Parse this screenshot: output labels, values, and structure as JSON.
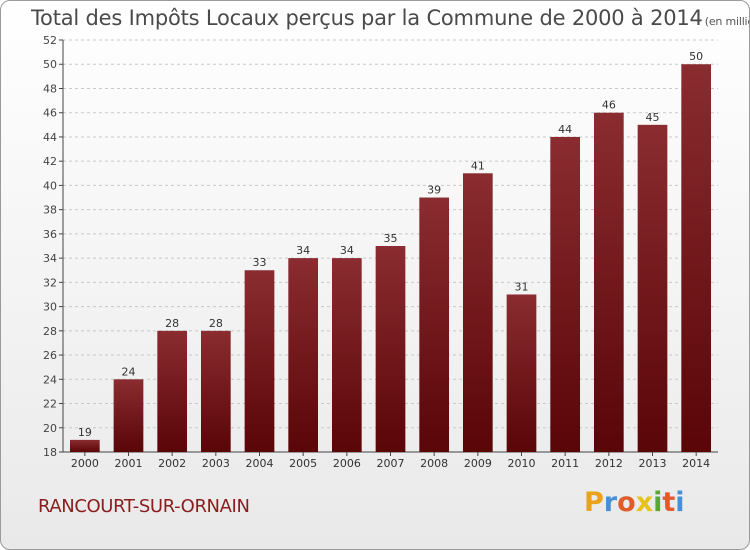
{
  "chart_data": {
    "type": "bar",
    "title": "Total des Impôts Locaux perçus par la Commune de 2000 à 2014",
    "unit_note": "(en milliers d'€)",
    "categories": [
      "2000",
      "2001",
      "2002",
      "2003",
      "2004",
      "2005",
      "2006",
      "2007",
      "2008",
      "2009",
      "2010",
      "2011",
      "2012",
      "2013",
      "2014"
    ],
    "values": [
      19,
      24,
      28,
      28,
      33,
      34,
      34,
      35,
      39,
      41,
      31,
      44,
      46,
      45,
      50
    ],
    "ylim": [
      18,
      52
    ],
    "ytick_step": 2,
    "grid": true,
    "xlabel": "",
    "ylabel": "",
    "bar_color": "#7b1a1d"
  },
  "footer": {
    "commune": "RANCOURT-SUR-ORNAIN",
    "logo_letters": [
      "P",
      "r",
      "o",
      "x",
      "i",
      "t",
      "i"
    ],
    "logo_colors": [
      "#e8a21c",
      "#4a8fd6",
      "#e25b2a",
      "#e8c21c",
      "#5aa832",
      "#e25b2a",
      "#4a8fd6"
    ]
  }
}
